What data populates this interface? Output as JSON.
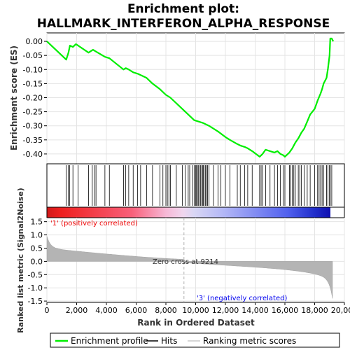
{
  "chart_data": {
    "type": "line",
    "title_line1": "Enrichment plot:",
    "title_line2": "HALLMARK_INTERFERON_ALPHA_RESPONSE",
    "xlabel": "Rank in Ordered Dataset",
    "ylabel_top": "Enrichment score (ES)",
    "ylabel_bottom": "Ranked list metric (Signal2Noise)",
    "x_range": [
      0,
      20000
    ],
    "x_ticks": [
      0,
      2000,
      4000,
      6000,
      8000,
      10000,
      12000,
      14000,
      16000,
      18000,
      20000
    ],
    "x_tick_labels": [
      "0",
      "2,000",
      "4,000",
      "6,000",
      "8,000",
      "10,000",
      "12,000",
      "14,000",
      "16,000",
      "18,000",
      "20,000"
    ],
    "es_ylim": [
      -0.435,
      0.03
    ],
    "es_ticks": [
      0.0,
      -0.05,
      -0.1,
      -0.15,
      -0.2,
      -0.25,
      -0.3,
      -0.35,
      -0.4
    ],
    "es_tick_labels": [
      "0.00",
      "-0.05",
      "-0.10",
      "-0.15",
      "-0.20",
      "-0.25",
      "-0.30",
      "-0.35",
      "-0.40"
    ],
    "metric_ylim": [
      -1.55,
      1.65
    ],
    "metric_ticks": [
      1.5,
      1.0,
      0.5,
      0.0,
      -0.5,
      -1.0,
      -1.5
    ],
    "metric_tick_labels": [
      "1.5",
      "1.0",
      "0.5",
      "0.0",
      "-0.5",
      "-1.0",
      "-1.5"
    ],
    "n_genes": 19200,
    "zero_cross": 9214,
    "zero_cross_label": "Zero cross at 9214",
    "pos_label": "'1' (positively correlated)",
    "neg_label": "'3' (negatively correlated)",
    "series_name": "Enrichment profile",
    "es_curve": {
      "x": [
        0,
        1300,
        1450,
        1550,
        1750,
        1950,
        2100,
        2800,
        2950,
        3100,
        3250,
        3900,
        4200,
        5150,
        5300,
        5500,
        5800,
        6100,
        6300,
        6700,
        7100,
        7600,
        8000,
        8300,
        8700,
        9100,
        9500,
        9900,
        10200,
        10500,
        10700,
        10900,
        11500,
        12000,
        12300,
        12800,
        13000,
        13300,
        13500,
        13800,
        14300,
        14500,
        14700,
        15000,
        15300,
        15500,
        15700,
        15900,
        16000,
        16300,
        16500,
        16700,
        16900,
        17100,
        17300,
        17500,
        17700,
        18000,
        18200,
        18400,
        18500,
        18600,
        18800,
        18900,
        19000,
        19050,
        19150,
        19250
      ],
      "y": [
        0.0,
        -0.065,
        -0.04,
        -0.015,
        -0.02,
        -0.01,
        -0.015,
        -0.04,
        -0.035,
        -0.03,
        -0.035,
        -0.055,
        -0.06,
        -0.1,
        -0.095,
        -0.1,
        -0.11,
        -0.115,
        -0.12,
        -0.13,
        -0.15,
        -0.17,
        -0.19,
        -0.2,
        -0.22,
        -0.24,
        -0.26,
        -0.28,
        -0.285,
        -0.29,
        -0.295,
        -0.3,
        -0.32,
        -0.34,
        -0.35,
        -0.365,
        -0.37,
        -0.375,
        -0.38,
        -0.39,
        -0.41,
        -0.4,
        -0.385,
        -0.39,
        -0.395,
        -0.39,
        -0.4,
        -0.405,
        -0.41,
        -0.395,
        -0.38,
        -0.36,
        -0.345,
        -0.325,
        -0.31,
        -0.285,
        -0.26,
        -0.24,
        -0.21,
        -0.185,
        -0.17,
        -0.15,
        -0.13,
        -0.095,
        -0.05,
        0.01,
        0.01,
        0.0
      ]
    },
    "hits": [
      1300,
      1450,
      1520,
      1750,
      2100,
      2800,
      3050,
      3200,
      3300,
      3900,
      4200,
      5150,
      5300,
      5500,
      5800,
      6100,
      6300,
      6700,
      7100,
      7600,
      7800,
      8000,
      8100,
      8200,
      8300,
      8700,
      9100,
      9300,
      9500,
      9600,
      9800,
      9900,
      10000,
      10050,
      10150,
      10200,
      10300,
      10350,
      10450,
      10500,
      10550,
      10650,
      10700,
      10800,
      10900,
      11200,
      11500,
      11700,
      12000,
      12300,
      12800,
      13000,
      13300,
      13500,
      13800,
      14300,
      14400,
      14500,
      14700,
      15000,
      15300,
      15500,
      15700,
      15900,
      16000,
      16300,
      16400,
      16500,
      16600,
      16700,
      16900,
      17000,
      17100,
      17300,
      17500,
      17700,
      18000,
      18200,
      18300,
      18400,
      18500,
      18600,
      18800,
      18900,
      19000,
      19050,
      19150
    ],
    "legend": [
      "Enrichment profile",
      "Hits",
      "Ranking metric scores"
    ],
    "colors": {
      "curve": "#00ee00",
      "metric_fill": "#b4b4b4",
      "hit": "#000000",
      "pos_text": "#ee0000",
      "neg_text": "#0000ee"
    }
  }
}
